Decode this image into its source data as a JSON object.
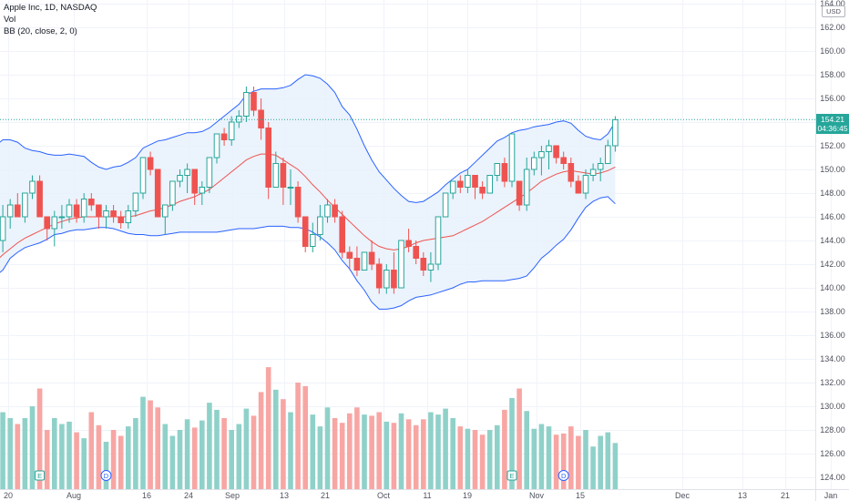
{
  "legend": {
    "symbol": "Apple Inc, 1D, NASDAQ",
    "volume": "Vol",
    "bollinger": "BB (20, close, 2, 0)"
  },
  "price_axis": {
    "currency": "USD",
    "last_price": "154.21",
    "countdown": "04:36:45"
  },
  "colors": {
    "up": "#26a69a",
    "down": "#ef5350",
    "vol_up": "#8fd1c9",
    "vol_down": "#f7a6a4",
    "band": "#2962ff",
    "basis": "#ef5350",
    "band_fill": "#e8f1fb",
    "grid": "#f0f3fa"
  },
  "chart_data": {
    "type": "candlestick",
    "title": "Apple Inc, 1D, NASDAQ",
    "ylim": [
      123.5,
      164
    ],
    "y_ticks": [
      124,
      126,
      128,
      130,
      132,
      134,
      136,
      138,
      140,
      142,
      144,
      146,
      148,
      150,
      152,
      154,
      156,
      158,
      160,
      162,
      164
    ],
    "x_ticks": [
      "20",
      "Aug",
      "16",
      "24",
      "Sep",
      "13",
      "21",
      "Oct",
      "11",
      "19",
      "Nov",
      "15",
      "Dec",
      "13",
      "21",
      "Jan"
    ],
    "events": [
      {
        "type": "earnings",
        "label": "E",
        "index": 6
      },
      {
        "type": "dividend",
        "label": "D",
        "index": 15
      },
      {
        "type": "earnings",
        "label": "E",
        "index": 70
      },
      {
        "type": "dividend",
        "label": "D",
        "index": 77
      }
    ],
    "candles": [
      [
        146,
        147,
        143,
        144
      ],
      [
        144,
        147,
        143,
        146
      ],
      [
        146,
        147.5,
        145,
        147
      ],
      [
        147,
        148,
        146,
        146
      ],
      [
        146,
        148,
        145.5,
        148
      ],
      [
        148,
        149.5,
        147.5,
        149
      ],
      [
        149,
        149.5,
        146,
        146
      ],
      [
        146,
        146,
        144,
        145
      ],
      [
        145,
        146.5,
        143.5,
        146
      ],
      [
        146,
        147,
        145,
        146
      ],
      [
        146,
        147.5,
        145.5,
        147
      ],
      [
        147,
        147.5,
        145.5,
        146
      ],
      [
        146,
        148,
        145.5,
        147.5
      ],
      [
        147.5,
        148,
        146.5,
        147
      ],
      [
        147,
        147,
        145,
        146
      ],
      [
        146,
        147,
        145,
        146.5
      ],
      [
        146.5,
        147,
        145.5,
        146
      ],
      [
        146,
        146.5,
        145,
        145.5
      ],
      [
        145.5,
        147,
        145,
        146.5
      ],
      [
        146.5,
        148,
        146,
        148
      ],
      [
        148,
        151,
        147.5,
        151
      ],
      [
        151,
        151.5,
        149.5,
        150
      ],
      [
        150,
        150,
        146,
        146
      ],
      [
        146,
        147,
        144.5,
        147
      ],
      [
        147,
        149,
        146.5,
        149
      ],
      [
        149,
        150,
        148.5,
        149.5
      ],
      [
        149.5,
        150.5,
        148,
        150
      ],
      [
        150,
        150,
        147,
        148
      ],
      [
        148,
        149,
        147,
        148.5
      ],
      [
        148.5,
        151,
        148,
        151
      ],
      [
        151,
        153,
        150.5,
        153
      ],
      [
        153,
        153.5,
        152,
        152.5
      ],
      [
        152.5,
        154.5,
        152,
        154
      ],
      [
        154,
        155,
        153.5,
        154.5
      ],
      [
        154.5,
        157,
        154,
        156.5
      ],
      [
        156.5,
        157,
        154.5,
        155
      ],
      [
        155,
        156,
        152.5,
        153.5
      ],
      [
        153.5,
        154,
        147.5,
        148.5
      ],
      [
        148.5,
        151.5,
        148.5,
        150.5
      ],
      [
        150.5,
        151,
        147,
        148.5
      ],
      [
        148.5,
        150,
        147,
        148.5
      ],
      [
        148.5,
        149,
        145.5,
        146
      ],
      [
        146,
        146,
        143,
        143.5
      ],
      [
        143.5,
        145.5,
        143,
        144.5
      ],
      [
        144.5,
        147,
        144,
        146
      ],
      [
        146,
        147.5,
        145.5,
        147
      ],
      [
        147,
        147.5,
        145.5,
        146
      ],
      [
        146,
        146.5,
        142.5,
        143
      ],
      [
        143,
        143.5,
        141.5,
        142.5
      ],
      [
        142.5,
        143.5,
        141,
        141.5
      ],
      [
        141.5,
        143,
        141.5,
        143
      ],
      [
        143,
        144,
        141.5,
        142
      ],
      [
        142,
        142.5,
        139.5,
        140
      ],
      [
        140,
        142,
        139.5,
        141.5
      ],
      [
        141.5,
        143,
        139.5,
        140
      ],
      [
        140,
        144,
        140,
        144
      ],
      [
        144,
        145,
        143,
        143.5
      ],
      [
        143.5,
        144,
        142,
        142.5
      ],
      [
        142.5,
        143,
        141,
        141.5
      ],
      [
        141.5,
        143,
        140.5,
        142
      ],
      [
        142,
        146,
        141.5,
        146
      ],
      [
        146,
        148,
        146,
        148
      ],
      [
        148,
        149,
        147.5,
        149
      ],
      [
        149,
        149.5,
        148,
        148.5
      ],
      [
        148.5,
        150,
        148,
        149.5
      ],
      [
        149.5,
        149.5,
        147.5,
        148.5
      ],
      [
        148.5,
        149,
        147.5,
        148
      ],
      [
        148,
        149.5,
        148,
        149.5
      ],
      [
        149.5,
        150.5,
        149,
        150.5
      ],
      [
        150.5,
        151,
        148.5,
        149
      ],
      [
        149,
        153,
        148.5,
        153
      ],
      [
        149,
        149,
        146.5,
        147
      ],
      [
        147,
        151,
        146.5,
        150
      ],
      [
        150,
        151.5,
        149.5,
        151
      ],
      [
        151,
        152,
        149.5,
        151.5
      ],
      [
        151.5,
        152.5,
        150,
        152
      ],
      [
        152,
        152,
        150.5,
        151
      ],
      [
        151,
        151.5,
        150,
        150.5
      ],
      [
        150.5,
        151,
        148.5,
        149
      ],
      [
        149,
        149.5,
        148,
        148
      ],
      [
        148,
        150,
        147.5,
        149.5
      ],
      [
        149.5,
        150.5,
        149,
        150
      ],
      [
        150,
        151,
        149,
        150.5
      ],
      [
        150.5,
        152.5,
        150.5,
        152
      ],
      [
        152,
        154.5,
        151.5,
        154.2
      ]
    ],
    "volume": [
      130.5,
      129.5,
      129,
      128.5,
      129,
      130,
      131.5,
      128,
      129,
      128.5,
      128.7,
      127.8,
      127.3,
      129.5,
      128.4,
      127,
      128,
      127.5,
      128.3,
      129,
      130.8,
      130.5,
      129.9,
      128.5,
      127.5,
      128,
      128.9,
      128.2,
      128.8,
      130.3,
      129.7,
      129,
      128,
      128.5,
      129.8,
      129.2,
      131.2,
      133.3,
      131.4,
      130.6,
      129.5,
      132,
      131.7,
      129.3,
      128.3,
      129.9,
      129,
      128.6,
      129.4,
      129.9,
      129.3,
      129.2,
      129.5,
      128.7,
      128.6,
      129.4,
      128.9,
      128.4,
      128.9,
      129.5,
      129.3,
      129.8,
      129,
      128.3,
      128.1,
      128,
      127.6,
      128,
      128.4,
      129.7,
      130.7,
      131.5,
      129.6,
      128.1,
      128.5,
      128.3,
      127.6,
      127.7,
      128.3,
      127.5,
      128,
      126.6,
      127.5,
      127.8,
      126.9
    ],
    "upper_band": [
      152,
      152.5,
      152.5,
      152.3,
      151.8,
      151.6,
      151.5,
      151.3,
      151.2,
      151.2,
      151.3,
      151.2,
      151.1,
      150.6,
      150.2,
      150,
      150.2,
      150.3,
      150.6,
      151,
      151.8,
      152.1,
      152.4,
      152.5,
      152.7,
      152.9,
      153.1,
      153.1,
      153.2,
      153.5,
      154,
      154.5,
      155,
      155.5,
      156.3,
      156.6,
      156.8,
      156.8,
      156.8,
      156.9,
      157.1,
      157.6,
      158,
      157.9,
      157.7,
      157.2,
      156.5,
      155.3,
      154.6,
      153.4,
      152,
      150.8,
      149.8,
      149.1,
      148.4,
      147.8,
      147.3,
      147.2,
      147.3,
      147.7,
      148.1,
      148.7,
      149.2,
      149.7,
      150,
      150.6,
      151.2,
      151.8,
      152.4,
      152.7,
      153.1,
      153.3,
      153.4,
      153.6,
      153.7,
      153.8,
      154,
      154.1,
      153.9,
      153.3,
      152.8,
      152.6,
      152.5,
      153,
      154
    ],
    "lower_band": [
      141,
      141.5,
      142.5,
      143,
      143.4,
      143.6,
      143.8,
      144.1,
      144.5,
      144.6,
      144.8,
      144.9,
      144.9,
      145,
      145.1,
      145.1,
      145,
      144.8,
      144.6,
      144.5,
      144.5,
      144.4,
      144.4,
      144.5,
      144.6,
      144.7,
      144.7,
      144.7,
      144.7,
      144.7,
      144.7,
      144.8,
      144.9,
      145,
      145,
      145,
      145.1,
      145.2,
      145.2,
      145.2,
      145.1,
      145.1,
      145,
      144.7,
      144.3,
      143.8,
      143.2,
      142.3,
      141.6,
      140.6,
      139.8,
      138.8,
      138.2,
      138.2,
      138.3,
      138.5,
      138.9,
      139.2,
      139.3,
      139.4,
      139.6,
      139.8,
      140,
      140.3,
      140.5,
      140.5,
      140.6,
      140.6,
      140.6,
      140.6,
      140.7,
      140.8,
      141,
      141.7,
      142.5,
      143,
      143.6,
      144.1,
      144.9,
      145.9,
      146.8,
      147.3,
      147.6,
      147.7,
      147.1
    ],
    "basis": [
      142.2,
      142.8,
      143.3,
      143.8,
      144.2,
      144.5,
      144.8,
      145.1,
      145.4,
      145.6,
      145.8,
      145.9,
      146,
      146,
      146,
      146,
      146,
      146,
      146,
      146.1,
      146.3,
      146.5,
      146.6,
      146.8,
      147,
      147.3,
      147.5,
      147.7,
      148,
      148.3,
      148.8,
      149.3,
      149.8,
      150.3,
      150.8,
      151.1,
      151.3,
      151.3,
      151.2,
      150.8,
      150.4,
      150,
      149.4,
      148.7,
      148.1,
      147.4,
      146.8,
      146.2,
      145.6,
      145,
      144.4,
      143.9,
      143.5,
      143.3,
      143.2,
      143.3,
      143.5,
      143.8,
      144,
      144.1,
      144.2,
      144.3,
      144.4,
      144.7,
      145,
      145.3,
      145.6,
      146,
      146.4,
      146.8,
      147.2,
      147.6,
      148,
      148.5,
      149,
      149.3,
      149.6,
      149.8,
      149.9,
      149.8,
      149.7,
      149.6,
      149.7,
      149.9,
      150.2
    ]
  }
}
